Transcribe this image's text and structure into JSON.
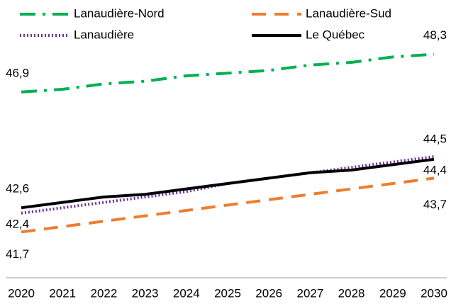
{
  "chart_data": {
    "type": "line",
    "categories": [
      "2020",
      "2021",
      "2022",
      "2023",
      "2024",
      "2025",
      "2026",
      "2027",
      "2028",
      "2029",
      "2030"
    ],
    "ylim": [
      40,
      50
    ],
    "series": [
      {
        "name": "Lanaudière-Nord",
        "color": "#00b050",
        "style": "dashdot",
        "values": [
          46.9,
          47.0,
          47.2,
          47.3,
          47.5,
          47.6,
          47.7,
          47.9,
          48.0,
          48.2,
          48.3
        ],
        "value_labels": [
          "46,9",
          null,
          null,
          null,
          null,
          null,
          null,
          null,
          null,
          null,
          "48,3"
        ]
      },
      {
        "name": "Lanaudière-Sud",
        "color": "#ed7d31",
        "style": "dashed",
        "values": [
          41.7,
          41.9,
          42.1,
          42.3,
          42.5,
          42.7,
          42.9,
          43.1,
          43.3,
          43.5,
          43.7
        ],
        "value_labels": [
          "41,7",
          null,
          null,
          null,
          null,
          null,
          null,
          null,
          null,
          null,
          "43,7"
        ]
      },
      {
        "name": "Lanaudière",
        "color": "#7030a0",
        "style": "dotted",
        "values": [
          42.4,
          42.6,
          42.8,
          43.0,
          43.2,
          43.5,
          43.7,
          43.9,
          44.1,
          44.3,
          44.5
        ],
        "value_labels": [
          "42,4",
          null,
          null,
          null,
          null,
          null,
          null,
          null,
          null,
          null,
          "44,5"
        ]
      },
      {
        "name": "Le Québec",
        "color": "#000000",
        "style": "solid",
        "values": [
          42.6,
          42.8,
          43.0,
          43.1,
          43.3,
          43.5,
          43.7,
          43.9,
          44.0,
          44.2,
          44.4
        ],
        "value_labels": [
          "42,6",
          null,
          null,
          null,
          null,
          null,
          null,
          null,
          null,
          null,
          "44,4"
        ]
      }
    ]
  }
}
